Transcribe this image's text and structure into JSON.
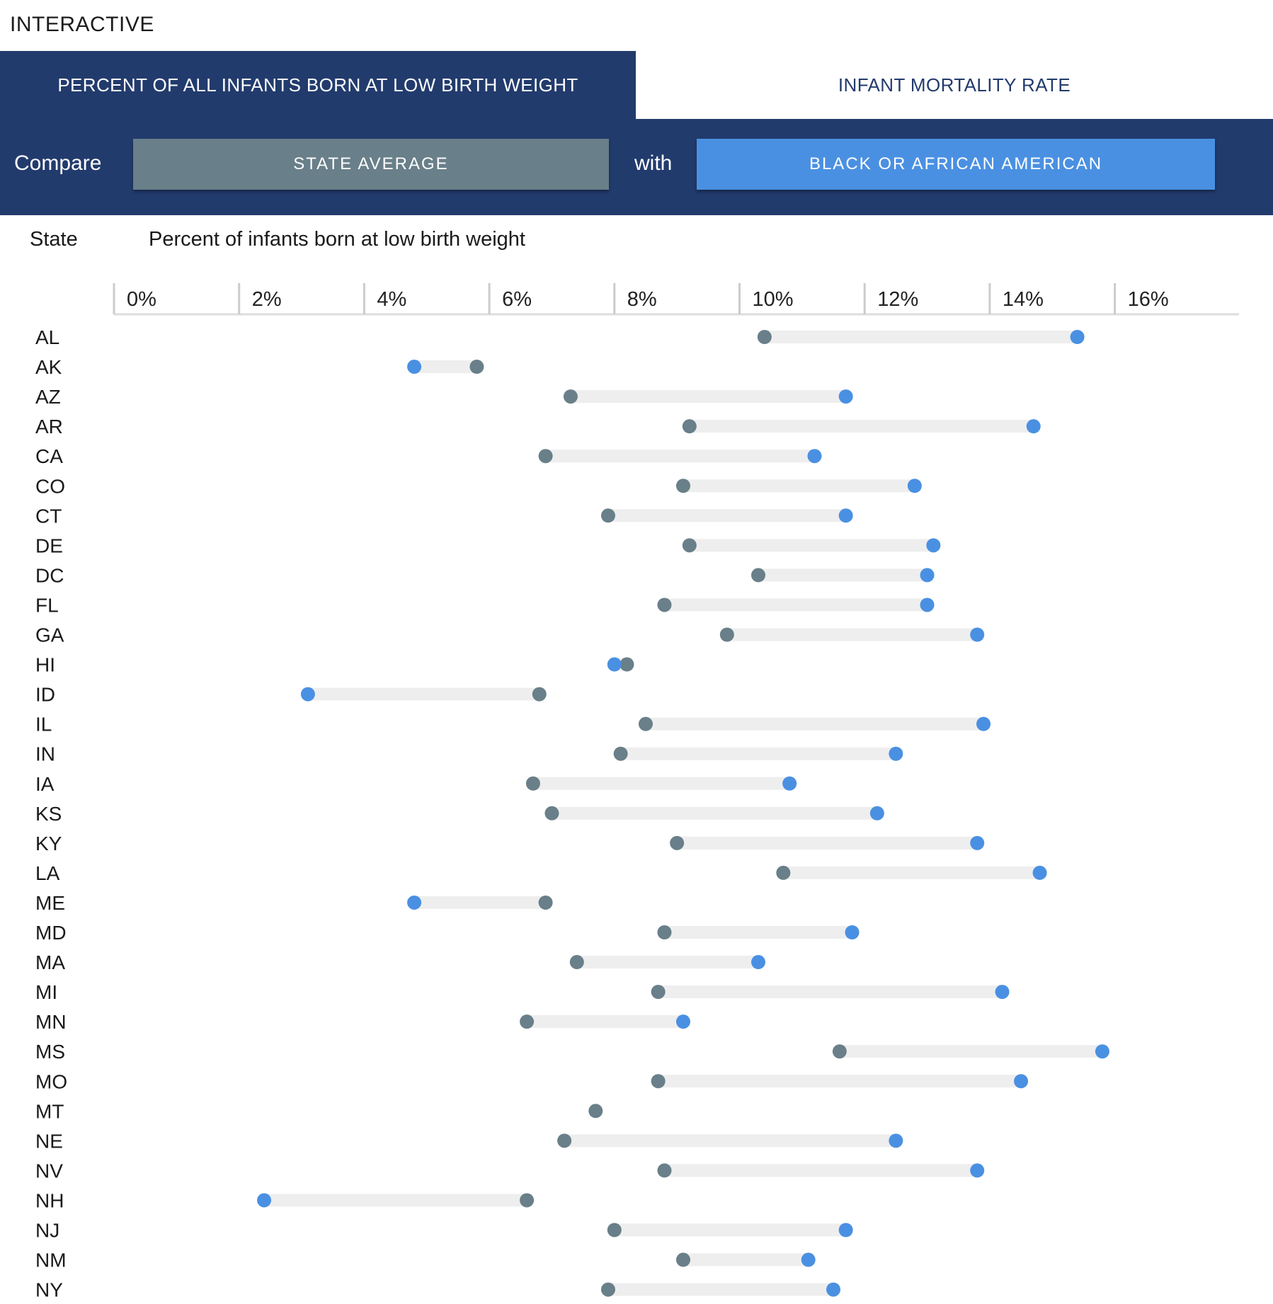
{
  "header": {
    "title": "INTERACTIVE"
  },
  "tabs": [
    {
      "label": "PERCENT OF ALL INFANTS BORN AT LOW BIRTH WEIGHT",
      "active": true
    },
    {
      "label": "INFANT MORTALITY RATE",
      "active": false
    }
  ],
  "compare": {
    "label": "Compare",
    "with_label": "with",
    "baseline_button": "STATE AVERAGE",
    "group_button": "BLACK OR AFRICAN AMERICAN"
  },
  "columns": {
    "state": "State",
    "metric": "Percent of infants born at low birth weight"
  },
  "colors": {
    "header_bg": "#223b6d",
    "baseline": "#697f89",
    "group": "#4a90e2",
    "range_bar": "#eeeeee",
    "axis": "#dddddd"
  },
  "chart_data": {
    "type": "dumbbell",
    "xlim": [
      0,
      18
    ],
    "tick_values": [
      0,
      2,
      4,
      6,
      8,
      10,
      12,
      14,
      16
    ],
    "tick_labels": [
      "0%",
      "2%",
      "4%",
      "6%",
      "8%",
      "10%",
      "12%",
      "14%",
      "16%"
    ],
    "series": [
      {
        "name": "STATE AVERAGE",
        "color": "#697f89"
      },
      {
        "name": "BLACK OR AFRICAN AMERICAN",
        "color": "#4a90e2"
      }
    ],
    "rows": [
      {
        "state": "AL",
        "average": 10.4,
        "group": 15.4
      },
      {
        "state": "AK",
        "average": 5.8,
        "group": 4.8
      },
      {
        "state": "AZ",
        "average": 7.3,
        "group": 11.7
      },
      {
        "state": "AR",
        "average": 9.2,
        "group": 14.7
      },
      {
        "state": "CA",
        "average": 6.9,
        "group": 11.2
      },
      {
        "state": "CO",
        "average": 9.1,
        "group": 12.8
      },
      {
        "state": "CT",
        "average": 7.9,
        "group": 11.7
      },
      {
        "state": "DE",
        "average": 9.2,
        "group": 13.1
      },
      {
        "state": "DC",
        "average": 10.3,
        "group": 13.0
      },
      {
        "state": "FL",
        "average": 8.8,
        "group": 13.0
      },
      {
        "state": "GA",
        "average": 9.8,
        "group": 13.8
      },
      {
        "state": "HI",
        "average": 8.2,
        "group": 8.0
      },
      {
        "state": "ID",
        "average": 6.8,
        "group": 3.1
      },
      {
        "state": "IL",
        "average": 8.5,
        "group": 13.9
      },
      {
        "state": "IN",
        "average": 8.1,
        "group": 12.5
      },
      {
        "state": "IA",
        "average": 6.7,
        "group": 10.8
      },
      {
        "state": "KS",
        "average": 7.0,
        "group": 12.2
      },
      {
        "state": "KY",
        "average": 9.0,
        "group": 13.8
      },
      {
        "state": "LA",
        "average": 10.7,
        "group": 14.8
      },
      {
        "state": "ME",
        "average": 6.9,
        "group": 4.8
      },
      {
        "state": "MD",
        "average": 8.8,
        "group": 11.8
      },
      {
        "state": "MA",
        "average": 7.4,
        "group": 10.3
      },
      {
        "state": "MI",
        "average": 8.7,
        "group": 14.2
      },
      {
        "state": "MN",
        "average": 6.6,
        "group": 9.1
      },
      {
        "state": "MS",
        "average": 11.6,
        "group": 15.8
      },
      {
        "state": "MO",
        "average": 8.7,
        "group": 14.5
      },
      {
        "state": "MT",
        "average": 7.7,
        "group": null
      },
      {
        "state": "NE",
        "average": 7.2,
        "group": 12.5
      },
      {
        "state": "NV",
        "average": 8.8,
        "group": 13.8
      },
      {
        "state": "NH",
        "average": 6.6,
        "group": 2.4
      },
      {
        "state": "NJ",
        "average": 8.0,
        "group": 11.7
      },
      {
        "state": "NM",
        "average": 9.1,
        "group": 11.1
      },
      {
        "state": "NY",
        "average": 7.9,
        "group": 11.5
      }
    ]
  }
}
